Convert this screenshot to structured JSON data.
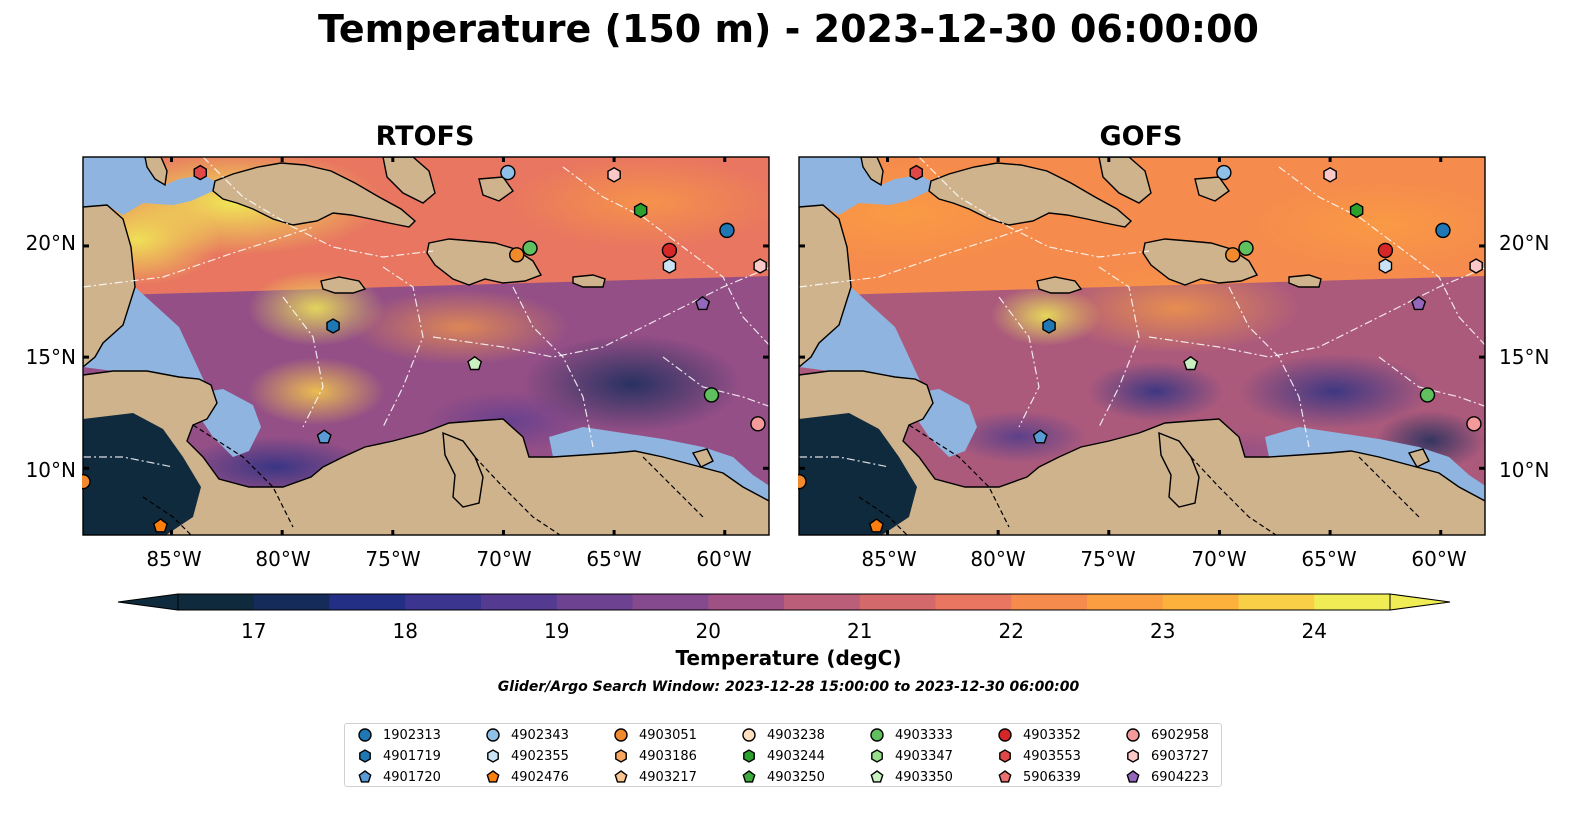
{
  "title": "Temperature (150 m) - 2023-12-30 06:00:00",
  "panels": [
    {
      "title": "RTOFS"
    },
    {
      "title": "GOFS"
    }
  ],
  "lat_ticks": [
    "20°N",
    "15°N",
    "10°N"
  ],
  "lon_ticks": [
    "85°W",
    "80°W",
    "75°W",
    "70°W",
    "65°W",
    "60°W"
  ],
  "colorbar": {
    "ticks": [
      "17",
      "18",
      "19",
      "20",
      "21",
      "22",
      "23",
      "24"
    ],
    "label": "Temperature (degC)",
    "colors": [
      "#0f2a3c",
      "#152c5a",
      "#232f84",
      "#3b3590",
      "#553a92",
      "#6c4291",
      "#85498d",
      "#9f5185",
      "#bb5e79",
      "#d4696b",
      "#e87660",
      "#f58b4d",
      "#fb9e42",
      "#fcb13c",
      "#f9cf48",
      "#f0ec55"
    ]
  },
  "search_window": "Glider/Argo Search Window: 2023-12-28 15:00:00 to 2023-12-30 06:00:00",
  "legend": [
    {
      "id": "1902313",
      "marker": "circle",
      "color": "#1f77b4"
    },
    {
      "id": "4901719",
      "marker": "hexagon",
      "color": "#1f77b4"
    },
    {
      "id": "4901720",
      "marker": "pentagon",
      "color": "#5b9bd5"
    },
    {
      "id": "4902343",
      "marker": "circle",
      "color": "#8fc0e8"
    },
    {
      "id": "4902355",
      "marker": "hexagon",
      "color": "#c9e3f5"
    },
    {
      "id": "4902476",
      "marker": "pentagon",
      "color": "#ff7f0e"
    },
    {
      "id": "4903051",
      "marker": "circle",
      "color": "#f08a2c"
    },
    {
      "id": "4903186",
      "marker": "hexagon",
      "color": "#f8a860"
    },
    {
      "id": "4903217",
      "marker": "pentagon",
      "color": "#fcc48e"
    },
    {
      "id": "4903238",
      "marker": "circle",
      "color": "#fde0c0"
    },
    {
      "id": "4903244",
      "marker": "hexagon",
      "color": "#2ca02c"
    },
    {
      "id": "4903250",
      "marker": "pentagon",
      "color": "#3caa3c"
    },
    {
      "id": "4903333",
      "marker": "circle",
      "color": "#60c060"
    },
    {
      "id": "4903347",
      "marker": "hexagon",
      "color": "#98df8a"
    },
    {
      "id": "4903350",
      "marker": "pentagon",
      "color": "#c8f0c0"
    },
    {
      "id": "4903352",
      "marker": "circle",
      "color": "#d62728"
    },
    {
      "id": "4903553",
      "marker": "hexagon",
      "color": "#e04848"
    },
    {
      "id": "5906339",
      "marker": "pentagon",
      "color": "#ec7070"
    },
    {
      "id": "6902958",
      "marker": "circle",
      "color": "#f49a9a"
    },
    {
      "id": "6903727",
      "marker": "hexagon",
      "color": "#fbc8c8"
    },
    {
      "id": "6904223",
      "marker": "pentagon",
      "color": "#9467bd"
    }
  ],
  "markers": [
    {
      "id": "4903553",
      "lon": -83.7,
      "lat": 23.3
    },
    {
      "id": "4902343",
      "lon": -69.8,
      "lat": 23.3
    },
    {
      "id": "6903727",
      "lon": -65.0,
      "lat": 23.2
    },
    {
      "id": "4903244",
      "lon": -63.8,
      "lat": 21.6
    },
    {
      "id": "1902313",
      "lon": -59.9,
      "lat": 20.7
    },
    {
      "id": "4903352",
      "lon": -62.5,
      "lat": 19.8
    },
    {
      "id": "4902355",
      "lon": -62.5,
      "lat": 19.1
    },
    {
      "id": "6903727",
      "lon": -58.4,
      "lat": 19.1
    },
    {
      "id": "4903333",
      "lon": -68.8,
      "lat": 19.9
    },
    {
      "id": "4903051",
      "lon": -69.4,
      "lat": 19.6
    },
    {
      "id": "6904223",
      "lon": -61.0,
      "lat": 17.4
    },
    {
      "id": "4901719",
      "lon": -77.7,
      "lat": 16.4
    },
    {
      "id": "4903350",
      "lon": -71.3,
      "lat": 14.7
    },
    {
      "id": "4903333",
      "lon": -60.6,
      "lat": 13.3
    },
    {
      "id": "6902958",
      "lon": -58.5,
      "lat": 12.0
    },
    {
      "id": "4901720",
      "lon": -78.1,
      "lat": 11.4
    },
    {
      "id": "4902476",
      "lon": -85.5,
      "lat": 7.4
    },
    {
      "id": "4903051",
      "lon": -89.0,
      "lat": 9.4
    }
  ],
  "domain": {
    "lon_min": -89,
    "lon_max": -58,
    "lat_min": 7,
    "lat_max": 24
  }
}
